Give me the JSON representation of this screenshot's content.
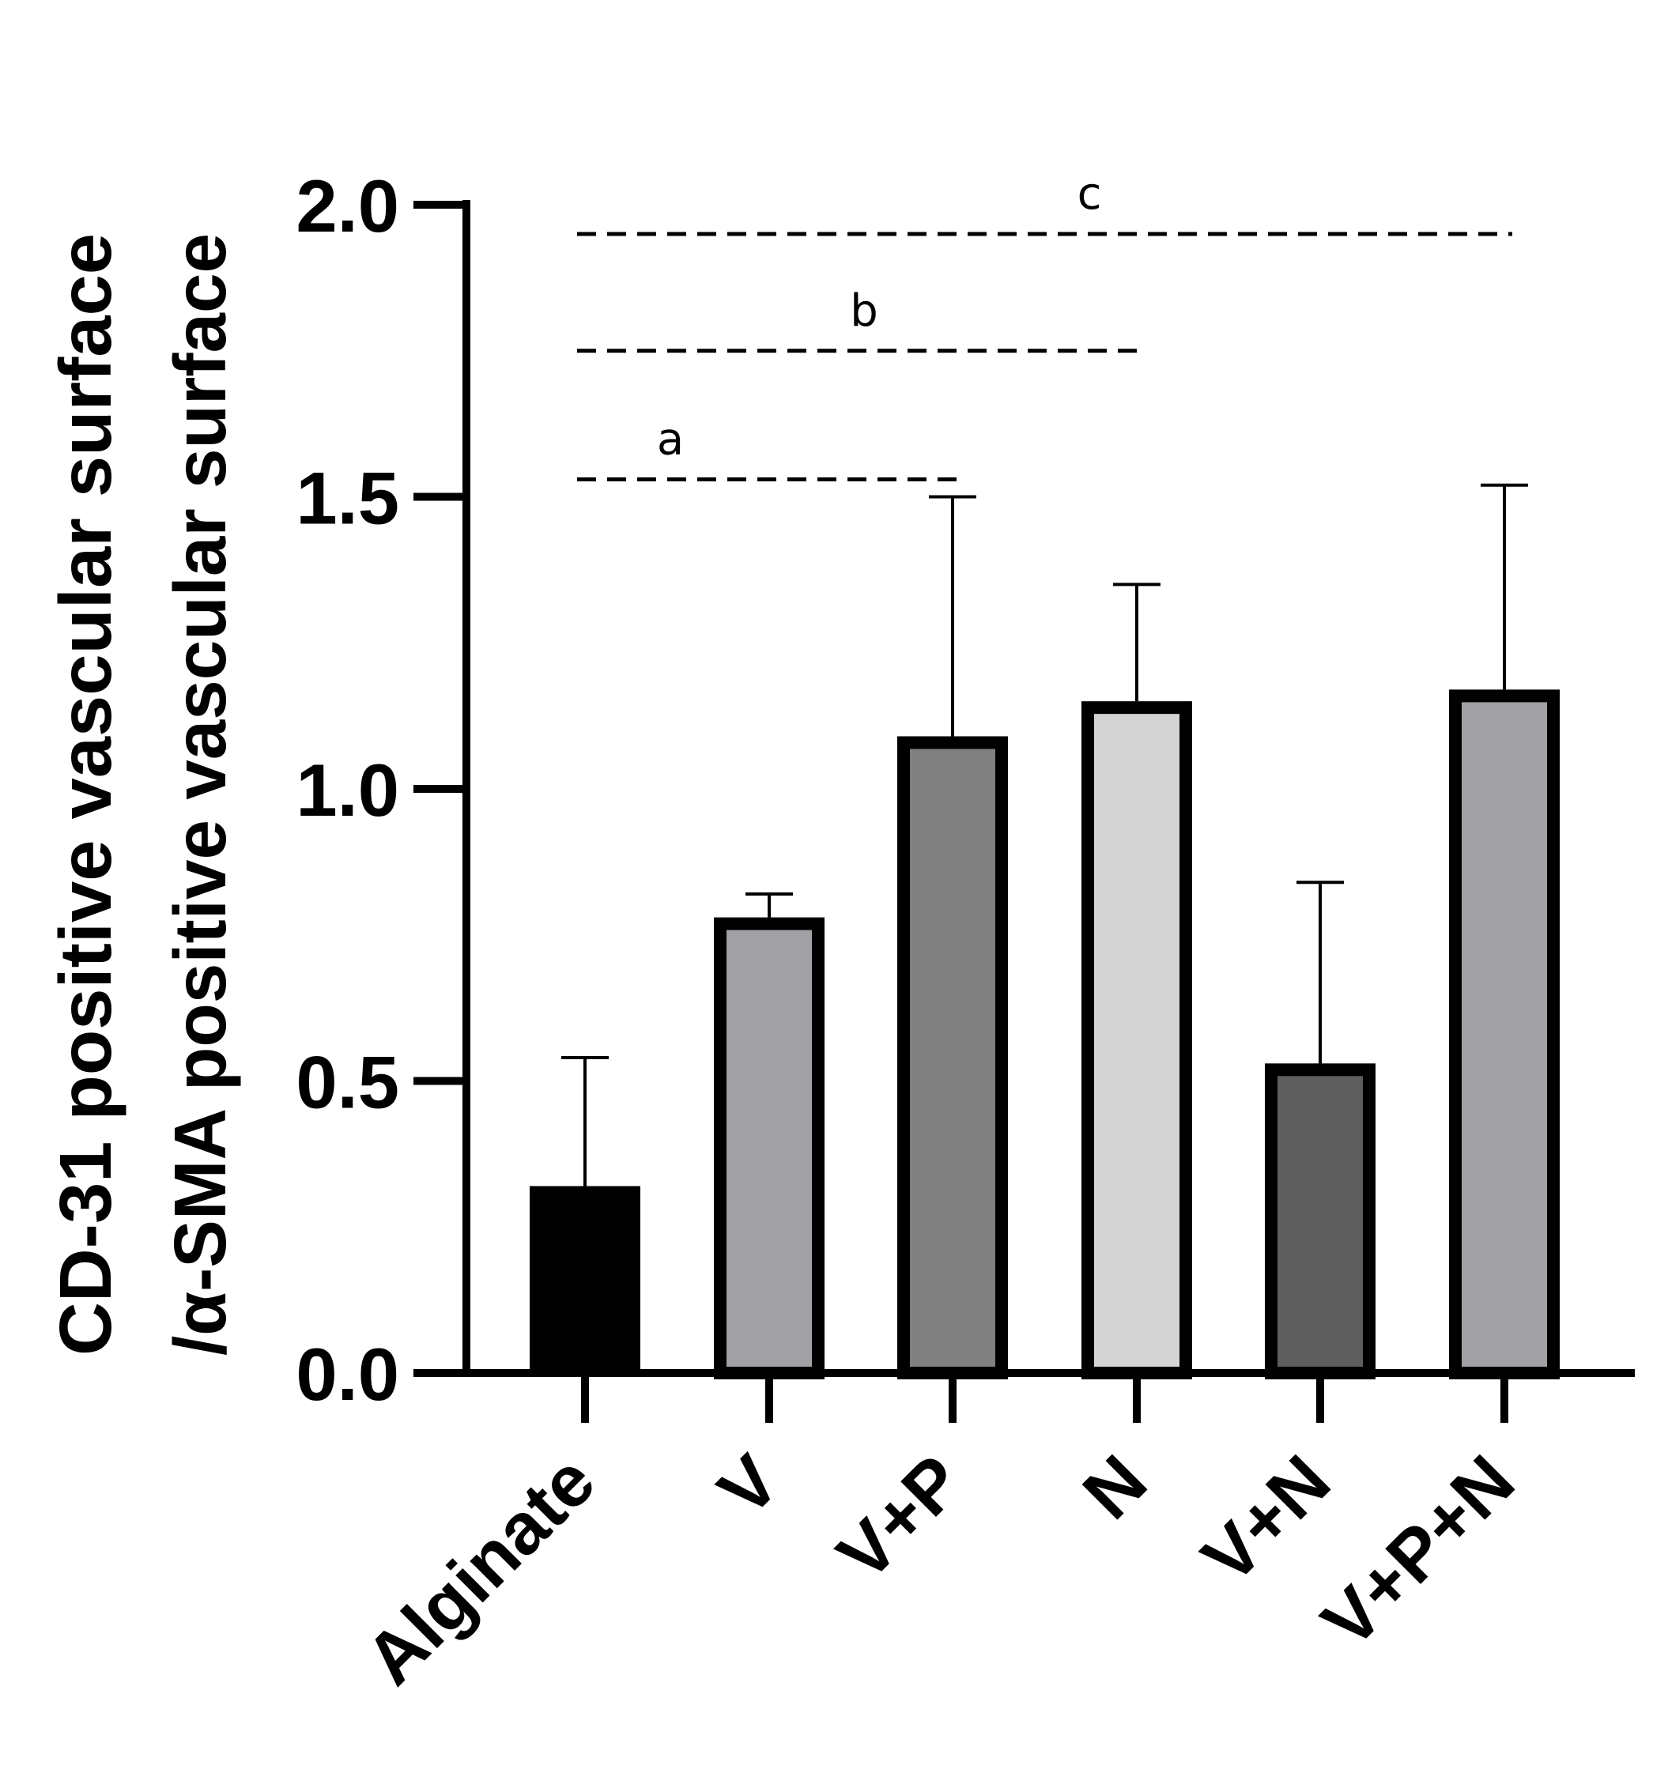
{
  "chart_data": {
    "type": "bar",
    "title": "",
    "xlabel": "",
    "ylabel_lines": [
      "CD-31 positive  vascular surface",
      "/α-SMA positive vascular surface"
    ],
    "ylim": [
      0,
      2.0
    ],
    "y_ticks": [
      "0.0",
      "0.5",
      "1.0",
      "1.5",
      "2.0"
    ],
    "categories": [
      "Alginate",
      "V",
      "V+P",
      "N",
      "V+N",
      "V+P+N"
    ],
    "values": [
      0.32,
      0.78,
      1.09,
      1.15,
      0.53,
      1.17
    ],
    "errors": [
      0.22,
      0.04,
      0.41,
      0.2,
      0.31,
      0.35
    ],
    "bar_colors": [
      "#000000",
      "#a0a0a5",
      "#808080",
      "#d4d4d4",
      "#5e5e5e",
      "#a0a0a5"
    ],
    "significance": [
      {
        "label": "a",
        "from_category": "Alginate",
        "to_category": "V+P",
        "level": 1.53
      },
      {
        "label": "b",
        "from_category": "Alginate",
        "to_category": "N",
        "level": 1.75
      },
      {
        "label": "c",
        "from_category": "Alginate",
        "to_category": "V+P+N",
        "level": 1.95
      }
    ]
  }
}
